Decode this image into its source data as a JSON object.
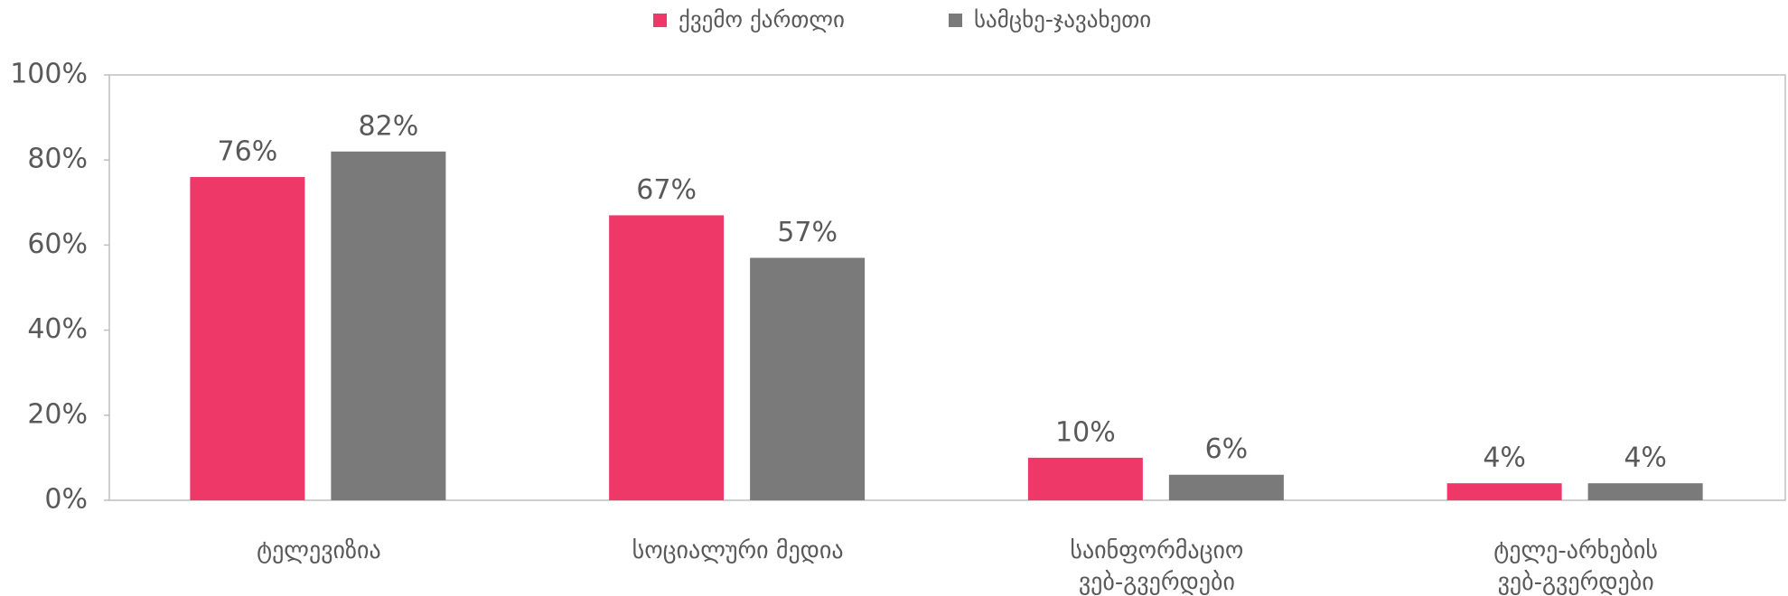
{
  "chart_data": {
    "type": "bar",
    "categories": [
      "ტელევიზია",
      "სოციალური მედია",
      "საინფორმაციო\nვებ-გვერდები",
      "ტელე-არხების\nვებ-გვერდები"
    ],
    "series": [
      {
        "name": "ქვემო ქართლი",
        "color": "#ee3868",
        "values": [
          76,
          67,
          10,
          4
        ],
        "value_labels": [
          "76%",
          "67%",
          "10%",
          "4%"
        ]
      },
      {
        "name": "სამცხე-ჯავახეთი",
        "color": "#7a7a7a",
        "values": [
          82,
          57,
          6,
          4
        ],
        "value_labels": [
          "82%",
          "57%",
          "6%",
          "4%"
        ]
      }
    ],
    "ylim": [
      0,
      100
    ],
    "yticks": [
      {
        "value": 0,
        "label": "0%"
      },
      {
        "value": 20,
        "label": "20%"
      },
      {
        "value": 40,
        "label": "40%"
      },
      {
        "value": 60,
        "label": "60%"
      },
      {
        "value": 80,
        "label": "80%"
      },
      {
        "value": 100,
        "label": "100%"
      }
    ],
    "legend": "top"
  }
}
